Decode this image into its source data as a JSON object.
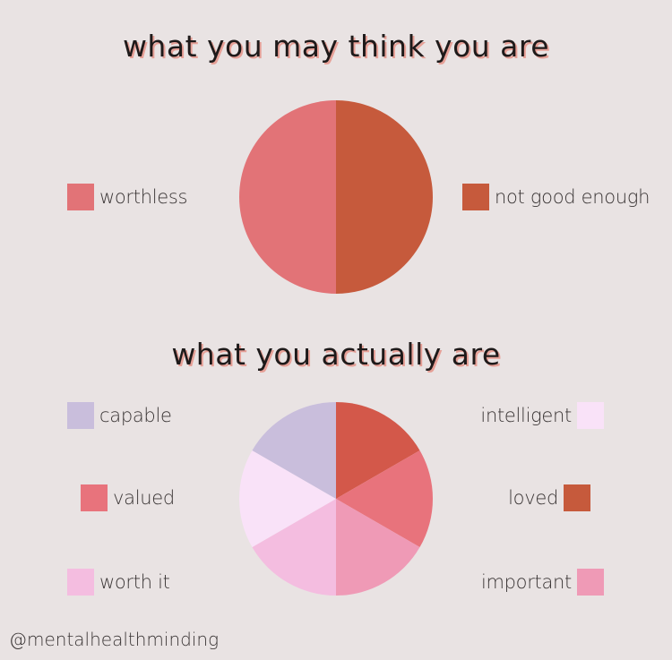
{
  "chart_data": [
    {
      "type": "pie",
      "title": "what you may think you are",
      "slices": [
        {
          "label": "not good enough",
          "value": 50,
          "color": "#c65a3c"
        },
        {
          "label": "worthless",
          "value": 50,
          "color": "#e27377"
        }
      ],
      "legend": [
        {
          "label": "worthless",
          "color": "#e27377",
          "side": "left"
        },
        {
          "label": "not good enough",
          "color": "#c65a3c",
          "side": "right"
        }
      ]
    },
    {
      "type": "pie",
      "title": "what you actually are",
      "slices": [
        {
          "label": "loved",
          "value": 16.67,
          "color": "#d3584a"
        },
        {
          "label": "valued",
          "value": 16.67,
          "color": "#e8737c"
        },
        {
          "label": "important",
          "value": 16.67,
          "color": "#ef9ab6"
        },
        {
          "label": "worth it",
          "value": 16.67,
          "color": "#f4bde0"
        },
        {
          "label": "intelligent",
          "value": 16.67,
          "color": "#f9e2f8"
        },
        {
          "label": "capable",
          "value": 16.67,
          "color": "#c9bedc"
        }
      ],
      "legend": [
        {
          "label": "capable",
          "color": "#c9bedc",
          "side": "left"
        },
        {
          "label": "valued",
          "color": "#e8737c",
          "side": "left"
        },
        {
          "label": "worth it",
          "color": "#f4bde0",
          "side": "left"
        },
        {
          "label": "intelligent",
          "color": "#f9e2f8",
          "side": "right"
        },
        {
          "label": "loved",
          "color": "#c65a3c",
          "side": "right"
        },
        {
          "label": "important",
          "color": "#ef9ab6",
          "side": "right"
        }
      ]
    }
  ],
  "footer": {
    "handle": "@mentalhealthminding"
  }
}
